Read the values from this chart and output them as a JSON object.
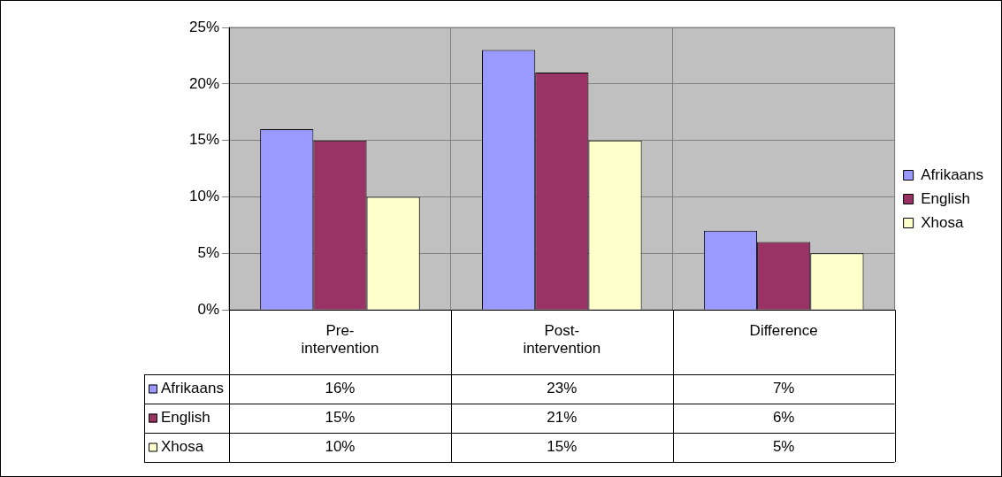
{
  "chart_data": {
    "type": "bar",
    "categories": [
      "Pre-intervention",
      "Post-intervention",
      "Difference"
    ],
    "series": [
      {
        "name": "Afrikaans",
        "color": "#9999ff",
        "values": [
          16,
          23,
          7
        ],
        "value_labels": [
          "16%",
          "23%",
          "7%"
        ]
      },
      {
        "name": "English",
        "color": "#993366",
        "values": [
          15,
          21,
          6
        ],
        "value_labels": [
          "15%",
          "21%",
          "6%"
        ]
      },
      {
        "name": "Xhosa",
        "color": "#ffffcc",
        "values": [
          10,
          15,
          5
        ],
        "value_labels": [
          "10%",
          "15%",
          "5%"
        ]
      }
    ],
    "ylim": [
      0,
      25
    ],
    "yticks": [
      {
        "value": 0,
        "label": "0%"
      },
      {
        "value": 5,
        "label": "5%"
      },
      {
        "value": 10,
        "label": "10%"
      },
      {
        "value": 15,
        "label": "15%"
      },
      {
        "value": 20,
        "label": "20%"
      },
      {
        "value": 25,
        "label": "25%"
      }
    ],
    "grid": true,
    "legend": "right"
  }
}
